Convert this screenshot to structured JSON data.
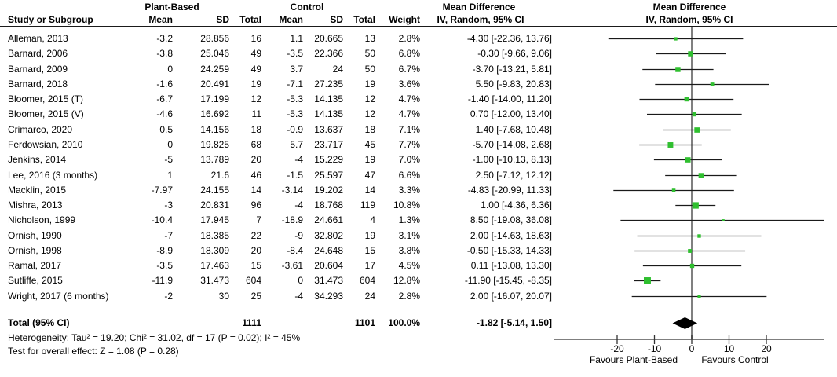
{
  "header": {
    "group_plant": "Plant-Based",
    "group_control": "Control",
    "md_table": "Mean Difference",
    "md_plot": "Mean Difference",
    "study_col": "Study or Subgroup",
    "cols": [
      "Mean",
      "SD",
      "Total",
      "Mean",
      "SD",
      "Total",
      "Weight",
      "IV, Random, 95% CI"
    ],
    "method_plot": "IV, Random, 95% CI"
  },
  "colors": {
    "marker_green": "#2fbf2f",
    "ci_line": "#1a1a1a",
    "zero_line": "#808080",
    "diamond": "#000000",
    "axis": "#333333"
  },
  "chart_data": {
    "type": "forest",
    "effect_measure": "Mean Difference",
    "model": "IV, Random, 95% CI",
    "studies": [
      {
        "name": "Alleman, 2013",
        "mean1": "-3.2",
        "sd1": "28.856",
        "n1": "16",
        "mean2": "1.1",
        "sd2": "20.665",
        "n2": "13",
        "weight": "2.8%",
        "ci_text": "-4.30 [-22.36, 13.76]",
        "md": -4.3,
        "lo": -22.36,
        "hi": 13.76,
        "w": 2.8
      },
      {
        "name": "Barnard, 2006",
        "mean1": "-3.8",
        "sd1": "25.046",
        "n1": "49",
        "mean2": "-3.5",
        "sd2": "22.366",
        "n2": "50",
        "weight": "6.8%",
        "ci_text": "-0.30 [-9.66, 9.06]",
        "md": -0.3,
        "lo": -9.66,
        "hi": 9.06,
        "w": 6.8
      },
      {
        "name": "Barnard, 2009",
        "mean1": "0",
        "sd1": "24.259",
        "n1": "49",
        "mean2": "3.7",
        "sd2": "24",
        "n2": "50",
        "weight": "6.7%",
        "ci_text": "-3.70 [-13.21, 5.81]",
        "md": -3.7,
        "lo": -13.21,
        "hi": 5.81,
        "w": 6.7
      },
      {
        "name": "Barnard, 2018",
        "mean1": "-1.6",
        "sd1": "20.491",
        "n1": "19",
        "mean2": "-7.1",
        "sd2": "27.235",
        "n2": "19",
        "weight": "3.6%",
        "ci_text": "5.50 [-9.83, 20.83]",
        "md": 5.5,
        "lo": -9.83,
        "hi": 20.83,
        "w": 3.6
      },
      {
        "name": "Bloomer, 2015 (T)",
        "mean1": "-6.7",
        "sd1": "17.199",
        "n1": "12",
        "mean2": "-5.3",
        "sd2": "14.135",
        "n2": "12",
        "weight": "4.7%",
        "ci_text": "-1.40 [-14.00, 11.20]",
        "md": -1.4,
        "lo": -14.0,
        "hi": 11.2,
        "w": 4.7
      },
      {
        "name": "Bloomer, 2015 (V)",
        "mean1": "-4.6",
        "sd1": "16.692",
        "n1": "11",
        "mean2": "-5.3",
        "sd2": "14.135",
        "n2": "12",
        "weight": "4.7%",
        "ci_text": "0.70 [-12.00, 13.40]",
        "md": 0.7,
        "lo": -12.0,
        "hi": 13.4,
        "w": 4.7
      },
      {
        "name": "Crimarco, 2020",
        "mean1": "0.5",
        "sd1": "14.156",
        "n1": "18",
        "mean2": "-0.9",
        "sd2": "13.637",
        "n2": "18",
        "weight": "7.1%",
        "ci_text": "1.40 [-7.68, 10.48]",
        "md": 1.4,
        "lo": -7.68,
        "hi": 10.48,
        "w": 7.1
      },
      {
        "name": "Ferdowsian, 2010",
        "mean1": "0",
        "sd1": "19.825",
        "n1": "68",
        "mean2": "5.7",
        "sd2": "23.717",
        "n2": "45",
        "weight": "7.7%",
        "ci_text": "-5.70 [-14.08, 2.68]",
        "md": -5.7,
        "lo": -14.08,
        "hi": 2.68,
        "w": 7.7
      },
      {
        "name": "Jenkins, 2014",
        "mean1": "-5",
        "sd1": "13.789",
        "n1": "20",
        "mean2": "-4",
        "sd2": "15.229",
        "n2": "19",
        "weight": "7.0%",
        "ci_text": "-1.00 [-10.13, 8.13]",
        "md": -1.0,
        "lo": -10.13,
        "hi": 8.13,
        "w": 7.0
      },
      {
        "name": "Lee, 2016 (3 months)",
        "mean1": "1",
        "sd1": "21.6",
        "n1": "46",
        "mean2": "-1.5",
        "sd2": "25.597",
        "n2": "47",
        "weight": "6.6%",
        "ci_text": "2.50 [-7.12, 12.12]",
        "md": 2.5,
        "lo": -7.12,
        "hi": 12.12,
        "w": 6.6
      },
      {
        "name": "Macklin, 2015",
        "mean1": "-7.97",
        "sd1": "24.155",
        "n1": "14",
        "mean2": "-3.14",
        "sd2": "19.202",
        "n2": "14",
        "weight": "3.3%",
        "ci_text": "-4.83 [-20.99, 11.33]",
        "md": -4.83,
        "lo": -20.99,
        "hi": 11.33,
        "w": 3.3
      },
      {
        "name": "Mishra, 2013",
        "mean1": "-3",
        "sd1": "20.831",
        "n1": "96",
        "mean2": "-4",
        "sd2": "18.768",
        "n2": "119",
        "weight": "10.8%",
        "ci_text": "1.00 [-4.36, 6.36]",
        "md": 1.0,
        "lo": -4.36,
        "hi": 6.36,
        "w": 10.8
      },
      {
        "name": "Nicholson, 1999",
        "mean1": "-10.4",
        "sd1": "17.945",
        "n1": "7",
        "mean2": "-18.9",
        "sd2": "24.661",
        "n2": "4",
        "weight": "1.3%",
        "ci_text": "8.50 [-19.08, 36.08]",
        "md": 8.5,
        "lo": -19.08,
        "hi": 36.08,
        "w": 1.3
      },
      {
        "name": "Ornish, 1990",
        "mean1": "-7",
        "sd1": "18.385",
        "n1": "22",
        "mean2": "-9",
        "sd2": "32.802",
        "n2": "19",
        "weight": "3.1%",
        "ci_text": "2.00 [-14.63, 18.63]",
        "md": 2.0,
        "lo": -14.63,
        "hi": 18.63,
        "w": 3.1
      },
      {
        "name": "Ornish, 1998",
        "mean1": "-8.9",
        "sd1": "18.309",
        "n1": "20",
        "mean2": "-8.4",
        "sd2": "24.648",
        "n2": "15",
        "weight": "3.8%",
        "ci_text": "-0.50 [-15.33, 14.33]",
        "md": -0.5,
        "lo": -15.33,
        "hi": 14.33,
        "w": 3.8
      },
      {
        "name": "Ramal, 2017",
        "mean1": "-3.5",
        "sd1": "17.463",
        "n1": "15",
        "mean2": "-3.61",
        "sd2": "20.604",
        "n2": "17",
        "weight": "4.5%",
        "ci_text": "0.11 [-13.08, 13.30]",
        "md": 0.11,
        "lo": -13.08,
        "hi": 13.3,
        "w": 4.5
      },
      {
        "name": "Sutliffe, 2015",
        "mean1": "-11.9",
        "sd1": "31.473",
        "n1": "604",
        "mean2": "0",
        "sd2": "31.473",
        "n2": "604",
        "weight": "12.8%",
        "ci_text": "-11.90 [-15.45, -8.35]",
        "md": -11.9,
        "lo": -15.45,
        "hi": -8.35,
        "w": 12.8
      },
      {
        "name": "Wright, 2017 (6 months)",
        "mean1": "-2",
        "sd1": "30",
        "n1": "25",
        "mean2": "-4",
        "sd2": "34.293",
        "n2": "24",
        "weight": "2.8%",
        "ci_text": "2.00 [-16.07, 20.07]",
        "md": 2.0,
        "lo": -16.07,
        "hi": 20.07,
        "w": 2.8
      }
    ],
    "total": {
      "label": "Total (95% CI)",
      "n1": "1111",
      "n2": "1101",
      "weight": "100.0%",
      "ci_text": "-1.82 [-5.14, 1.50]",
      "md": -1.82,
      "lo": -5.14,
      "hi": 1.5
    },
    "axis": {
      "ticks": [
        "-20",
        "-10",
        "0",
        "10",
        "20"
      ],
      "tick_values": [
        -20,
        -10,
        0,
        10,
        20
      ],
      "min": -36.8,
      "max": 35.6,
      "favours_left": "Favours Plant-Based",
      "favours_right": "Favours Control"
    },
    "heterogeneity": "Heterogeneity: Tau² = 19.20; Chi² = 31.02, df = 17 (P = 0.02); I² = 45%",
    "overall_effect": "Test for overall effect: Z = 1.08 (P = 0.28)"
  }
}
